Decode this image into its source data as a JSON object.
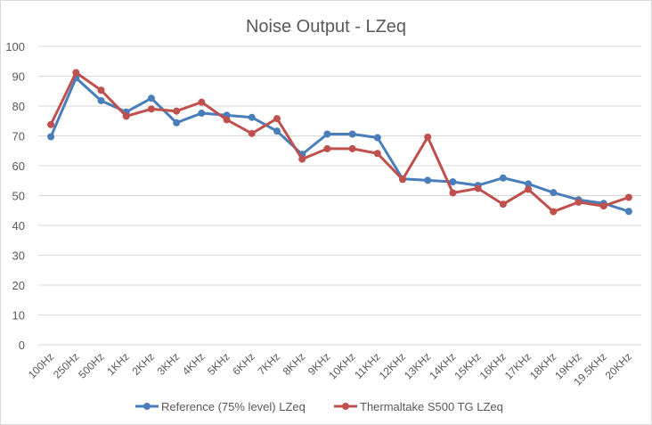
{
  "chart_data": {
    "type": "line",
    "title": "Noise Output  - LZeq",
    "xlabel": "",
    "ylabel": "",
    "ylim": [
      0,
      100
    ],
    "yticks": [
      0,
      10,
      20,
      30,
      40,
      50,
      60,
      70,
      80,
      90,
      100
    ],
    "grid": true,
    "legend_position": "bottom",
    "categories": [
      "100Hz",
      "250Hz",
      "500Hz",
      "1KHz",
      "2KHz",
      "3KHz",
      "4KHz",
      "5KHz",
      "6KHz",
      "7KHz",
      "8KHz",
      "9KHz",
      "10KHz",
      "11KHz",
      "12KHz",
      "13KHz",
      "14KHz",
      "15KHz",
      "16KHz",
      "17KHz",
      "18KHz",
      "19KHz",
      "19.5KHz",
      "20KHz"
    ],
    "series": [
      {
        "name": "Reference (75% level) LZeq",
        "color": "#4a7ebb",
        "values": [
          69.7,
          89.4,
          81.8,
          78.0,
          82.6,
          74.4,
          77.6,
          76.9,
          76.2,
          71.6,
          63.8,
          70.6,
          70.6,
          69.4,
          55.6,
          55.1,
          54.6,
          53.4,
          55.9,
          53.9,
          51.0,
          48.6,
          47.4,
          44.7
        ]
      },
      {
        "name": "Thermaltake S500 TG LZeq",
        "color": "#c0504d",
        "values": [
          73.8,
          91.2,
          85.3,
          76.6,
          79.0,
          78.3,
          81.3,
          75.4,
          70.8,
          75.8,
          62.2,
          65.7,
          65.7,
          64.1,
          55.4,
          69.6,
          50.9,
          52.4,
          47.1,
          52.1,
          44.6,
          47.8,
          46.5,
          49.4
        ]
      }
    ]
  }
}
